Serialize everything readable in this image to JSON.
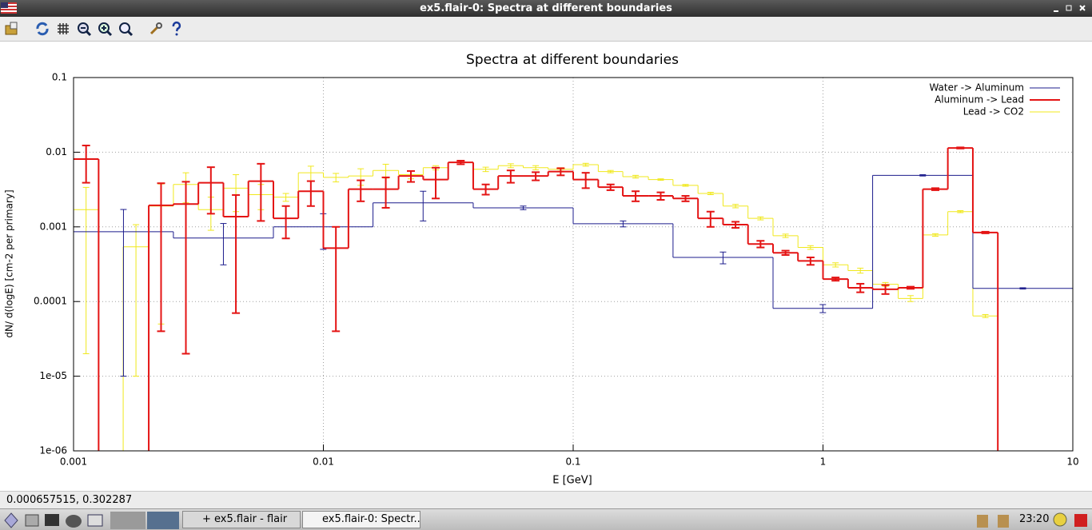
{
  "window": {
    "title": "ex5.flair-0: Spectra at different boundaries"
  },
  "plot": {
    "type": "step-histogram",
    "title": "Spectra at different boundaries",
    "x_label": "E [GeV]",
    "y_label": "dN/ d(logE) [cm-2 per primary]",
    "xlog": true,
    "ylog": true,
    "grid": true,
    "legend": "top-right",
    "xlim": [
      0.001,
      10
    ],
    "ylim": [
      1e-06,
      0.1
    ],
    "xticks": [
      0.001,
      0.01,
      0.1,
      1,
      10
    ],
    "yticks": [
      {
        "value": 1e-06,
        "label": "1e-06"
      },
      {
        "value": 1e-05,
        "label": "1e-05"
      },
      0.0001,
      0.001,
      0.01,
      0.1
    ],
    "series": [
      {
        "name": "Water -> Aluminum",
        "color": "#1c1c8c",
        "line_width": 1,
        "bins": [
          0.001,
          0.00251,
          0.00631,
          0.0158,
          0.0398,
          0.1,
          0.251,
          0.631,
          1.58,
          3.98,
          10
        ],
        "values": [
          0.00086,
          0.00071,
          0.001,
          0.0021,
          0.0018,
          0.0011,
          0.00039,
          8.1e-05,
          0.0049,
          0.00015
        ],
        "errors": [
          0.00085,
          0.0004,
          0.0005,
          0.0009,
          0.0001,
          0.0001,
          7e-05,
          1e-05,
          0.0001,
          3e-06
        ]
      },
      {
        "name": "Aluminum -> Lead",
        "color": "#e41414",
        "line_width": 2,
        "bins": [
          0.001,
          0.00126,
          0.00158,
          0.002,
          0.00251,
          0.00316,
          0.00398,
          0.00501,
          0.00631,
          0.00794,
          0.01,
          0.0126,
          0.0158,
          0.02,
          0.0251,
          0.0316,
          0.0398,
          0.0501,
          0.0631,
          0.0794,
          0.1,
          0.126,
          0.158,
          0.2,
          0.251,
          0.316,
          0.398,
          0.501,
          0.631,
          0.794,
          1,
          1.26,
          1.58,
          2,
          2.51,
          3.16,
          3.98,
          5.01
        ],
        "values": [
          0.0081,
          0,
          0,
          0.00194,
          0.00202,
          0.0039,
          0.00137,
          0.0041,
          0.0013,
          0.003,
          0.00052,
          0.0032,
          0.0032,
          0.0048,
          0.0043,
          0.0073,
          0.0032,
          0.0048,
          0.0048,
          0.0055,
          0.0043,
          0.0034,
          0.0026,
          0.0026,
          0.0024,
          0.0013,
          0.00107,
          0.00059,
          0.00045,
          0.00035,
          0.0002,
          0.000153,
          0.000146,
          0.000153,
          0.0032,
          0.0114,
          0.00084
        ],
        "errors": [
          0.0042,
          0,
          0,
          0.0019,
          0.002,
          0.0024,
          0.0013,
          0.0029,
          0.0006,
          0.0011,
          0.00048,
          0.001,
          0.0014,
          0.0008,
          0.0019,
          0.0004,
          0.0005,
          0.0009,
          0.0006,
          0.0006,
          0.001,
          0.0003,
          0.0004,
          0.0003,
          0.0002,
          0.0003,
          0.0001,
          6e-05,
          3e-05,
          4e-05,
          1e-05,
          2e-05,
          2e-05,
          5e-06,
          0.0001,
          0.0002,
          2e-05
        ]
      },
      {
        "name": "Lead -> CO2",
        "color": "#f0e81c",
        "line_width": 1,
        "bins": [
          0.001,
          0.00126,
          0.00158,
          0.002,
          0.00251,
          0.00316,
          0.00398,
          0.00501,
          0.00631,
          0.00794,
          0.01,
          0.0126,
          0.0158,
          0.02,
          0.0251,
          0.0316,
          0.0398,
          0.0501,
          0.0631,
          0.0794,
          0.1,
          0.126,
          0.158,
          0.2,
          0.251,
          0.316,
          0.398,
          0.501,
          0.631,
          0.794,
          1,
          1.26,
          1.58,
          2,
          2.51,
          3.16,
          3.98,
          5.01
        ],
        "values": [
          0.0017,
          0,
          0.00054,
          0.0019,
          0.0037,
          0.0017,
          0.0033,
          0.0027,
          0.0025,
          0.0053,
          0.0046,
          0.0048,
          0.0057,
          0.005,
          0.0062,
          0.0073,
          0.0059,
          0.0066,
          0.0062,
          0.0059,
          0.0068,
          0.0055,
          0.0047,
          0.0043,
          0.0036,
          0.0028,
          0.0019,
          0.0013,
          0.00076,
          0.00053,
          0.00031,
          0.00026,
          0.00017,
          0.00011,
          0.00078,
          0.0016,
          6.4e-05
        ],
        "errors": [
          0.00168,
          0,
          0.00053,
          0.00185,
          0.0016,
          0.0008,
          0.0017,
          0.001,
          0.0003,
          0.0012,
          0.0006,
          0.0012,
          0.0012,
          0.0006,
          0.0004,
          0.0004,
          0.0004,
          0.0004,
          0.0004,
          0.0003,
          0.0003,
          0.0002,
          0.0002,
          0.0001,
          0.0001,
          0.0001,
          0.0001,
          6e-05,
          4e-05,
          3e-05,
          2e-05,
          2e-05,
          1e-05,
          1e-05,
          3e-05,
          5e-05,
          3e-06
        ]
      }
    ]
  },
  "statusbar": {
    "coordinates": "0.000657515,  0.302287"
  },
  "taskbar": {
    "tasks": [
      "+ ex5.flair - flair",
      "ex5.flair-0: Spectr..."
    ],
    "clock": "23:20"
  }
}
